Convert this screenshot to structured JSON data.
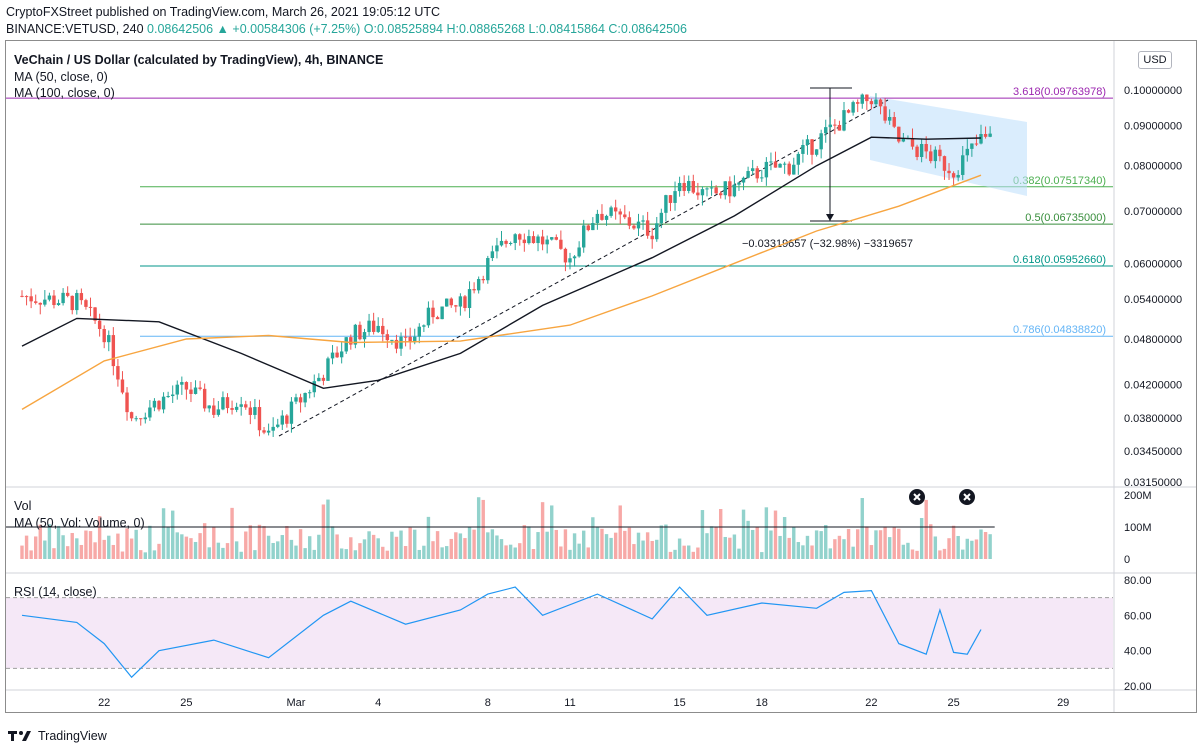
{
  "header": {
    "line1": "CryptoFXStreet published on TradingView.com, March 26, 2021 19:05:12 UTC",
    "symbol_prefix": "BINANCE:VETUSD, 240",
    "ohlc_text": "0.08642506 ▲ +0.00584306 (+7.25%) O:0.08525894 H:0.08865268 L:0.08415864 C:0.08642506"
  },
  "legend": {
    "title": "VeChain / US Dollar (calculated by TradingView), 4h, BINANCE",
    "ma50": "MA (50, close, 0)",
    "ma100": "MA (100, close, 0)",
    "vol": "Vol",
    "vol_ma": "MA (50, Vol: Volume, 0)",
    "rsi": "RSI (14, close)"
  },
  "currency_badge": "USD",
  "footer": {
    "brand": "TradingView"
  },
  "measure_label": "−0.03319657 (−32.98%) −3319657",
  "fib_levels": [
    {
      "label": "3.618(0.09763978)",
      "value": 0.09763978,
      "color": "#9c27b0"
    },
    {
      "label": "0.382(0.07517340)",
      "value": 0.0751734,
      "color": "#4caf50"
    },
    {
      "label": "0.5(0.06735000)",
      "value": 0.06735,
      "color": "#388e3c"
    },
    {
      "label": "0.618(0.05952660)",
      "value": 0.0595266,
      "color": "#009688"
    },
    {
      "label": "0.786(0.04838820)",
      "value": 0.0483882,
      "color": "#64b5f6"
    }
  ],
  "colors": {
    "up": "#26a69a",
    "down": "#ef5350",
    "ma50": "#131722",
    "ma100": "#f7a540",
    "channel": "#bbdefb",
    "rsi": "#2196f3",
    "rsi_band": "#e1bee7"
  },
  "chart_data": {
    "type": "candlestick",
    "title": "VeChain / US Dollar (calculated by TradingView), 4h, BINANCE",
    "price_scale": "log",
    "price_ticks": [
      "0.10000000",
      "0.09000000",
      "0.08000000",
      "0.07000000",
      "0.06000000",
      "0.05400000",
      "0.04800000",
      "0.04200000",
      "0.03800000",
      "0.03450000",
      "0.03150000"
    ],
    "x_ticks": [
      "22",
      "25",
      "Mar",
      "4",
      "8",
      "11",
      "15",
      "18",
      "22",
      "25",
      "29"
    ],
    "volume_ticks": [
      "200M",
      "100M",
      "0"
    ],
    "rsi_ticks": [
      "80.00",
      "60.00",
      "40.00",
      "20.00"
    ],
    "price_path": [
      [
        "Feb 19",
        0.0545
      ],
      [
        "Feb 21",
        0.0535
      ],
      [
        "Feb 22",
        0.049
      ],
      [
        "Feb 23",
        0.038
      ],
      [
        "Feb 24",
        0.04
      ],
      [
        "Feb 25",
        0.0415
      ],
      [
        "Feb 26",
        0.039
      ],
      [
        "Feb 27",
        0.0405
      ],
      [
        "Feb 28",
        0.036
      ],
      [
        "Mar 1",
        0.0395
      ],
      [
        "Mar 2",
        0.0435
      ],
      [
        "Mar 3",
        0.0485
      ],
      [
        "Mar 4",
        0.05
      ],
      [
        "Mar 5",
        0.047
      ],
      [
        "Mar 6",
        0.052
      ],
      [
        "Mar 7",
        0.053
      ],
      [
        "Mar 8",
        0.06
      ],
      [
        "Mar 9",
        0.066
      ],
      [
        "Mar 10",
        0.064
      ],
      [
        "Mar 11",
        0.061
      ],
      [
        "Mar 12",
        0.07
      ],
      [
        "Mar 13",
        0.068
      ],
      [
        "Mar 14",
        0.066
      ],
      [
        "Mar 15",
        0.077
      ],
      [
        "Mar 16",
        0.073
      ],
      [
        "Mar 17",
        0.075
      ],
      [
        "Mar 18",
        0.079
      ],
      [
        "Mar 19",
        0.08
      ],
      [
        "Mar 20",
        0.086
      ],
      [
        "Mar 21",
        0.092
      ],
      [
        "Mar 22",
        0.098
      ],
      [
        "Mar 23",
        0.086
      ],
      [
        "Mar 24",
        0.083
      ],
      [
        "Mar 25",
        0.079
      ],
      [
        "Mar 26",
        0.0864
      ]
    ],
    "ma50_path": [
      [
        "Feb 19",
        0.047
      ],
      [
        "Feb 21",
        0.051
      ],
      [
        "Feb 24",
        0.0505
      ],
      [
        "Feb 27",
        0.046
      ],
      [
        "Mar 2",
        0.0415
      ],
      [
        "Mar 4",
        0.0425
      ],
      [
        "Mar 7",
        0.046
      ],
      [
        "Mar 10",
        0.053
      ],
      [
        "Mar 14",
        0.061
      ],
      [
        "Mar 17",
        0.069
      ],
      [
        "Mar 20",
        0.08
      ],
      [
        "Mar 22",
        0.087
      ],
      [
        "Mar 24",
        0.0865
      ],
      [
        "Mar 26",
        0.0868
      ]
    ],
    "ma100_path": [
      [
        "Feb 19",
        0.039
      ],
      [
        "Feb 22",
        0.045
      ],
      [
        "Feb 25",
        0.048
      ],
      [
        "Feb 28",
        0.0485
      ],
      [
        "Mar 3",
        0.0475
      ],
      [
        "Mar 7",
        0.0477
      ],
      [
        "Mar 11",
        0.05
      ],
      [
        "Mar 14",
        0.0545
      ],
      [
        "Mar 17",
        0.06
      ],
      [
        "Mar 20",
        0.066
      ],
      [
        "Mar 23",
        0.071
      ],
      [
        "Mar 26",
        0.0778
      ]
    ],
    "rsi_path": [
      [
        "Feb 19",
        60
      ],
      [
        "Feb 21",
        56
      ],
      [
        "Feb 22",
        44
      ],
      [
        "Feb 23",
        25
      ],
      [
        "Feb 24",
        40
      ],
      [
        "Feb 26",
        46
      ],
      [
        "Feb 28",
        36
      ],
      [
        "Mar 2",
        60
      ],
      [
        "Mar 3",
        68
      ],
      [
        "Mar 5",
        55
      ],
      [
        "Mar 7",
        63
      ],
      [
        "Mar 8",
        72
      ],
      [
        "Mar 9",
        76
      ],
      [
        "Mar 10",
        60
      ],
      [
        "Mar 12",
        72
      ],
      [
        "Mar 14",
        58
      ],
      [
        "Mar 15",
        76
      ],
      [
        "Mar 16",
        60
      ],
      [
        "Mar 18",
        67
      ],
      [
        "Mar 20",
        64
      ],
      [
        "Mar 21",
        73
      ],
      [
        "Mar 22",
        74
      ],
      [
        "Mar 23",
        44
      ],
      [
        "Mar 24",
        38
      ],
      [
        "Mar 24.5",
        63
      ],
      [
        "Mar 25",
        39
      ],
      [
        "Mar 25.5",
        38
      ],
      [
        "Mar 26",
        52
      ]
    ],
    "volume_ma": 100
  }
}
